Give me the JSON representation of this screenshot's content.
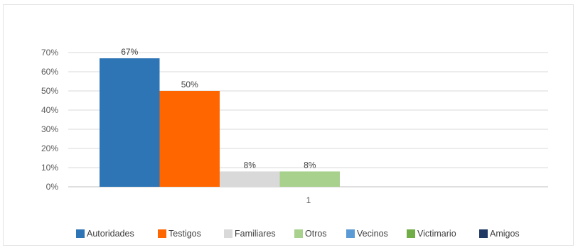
{
  "chart_data": {
    "type": "bar",
    "categories": [
      "1"
    ],
    "series": [
      {
        "name": "Autoridades",
        "values": [
          0.67
        ],
        "label": "67%",
        "color": "#2E75B6"
      },
      {
        "name": "Testigos",
        "values": [
          0.5
        ],
        "label": "50%",
        "color": "#FF6600"
      },
      {
        "name": "Familiares",
        "values": [
          0.08
        ],
        "label": "8%",
        "color": "#D9D9D9"
      },
      {
        "name": "Otros",
        "values": [
          0.08
        ],
        "label": "8%",
        "color": "#A9D18E"
      },
      {
        "name": "Vecinos",
        "values": [
          0
        ],
        "label": "",
        "color": "#5B9BD5"
      },
      {
        "name": "Victimario",
        "values": [
          0
        ],
        "label": "",
        "color": "#70AD47"
      },
      {
        "name": "Amigos",
        "values": [
          0
        ],
        "label": "",
        "color": "#1F3864"
      }
    ],
    "ylim": [
      0,
      0.7
    ],
    "yticks": [
      {
        "value": 0.0,
        "label": "0%"
      },
      {
        "value": 0.1,
        "label": "10%"
      },
      {
        "value": 0.2,
        "label": "20%"
      },
      {
        "value": 0.3,
        "label": "30%"
      },
      {
        "value": 0.4,
        "label": "40%"
      },
      {
        "value": 0.5,
        "label": "50%"
      },
      {
        "value": 0.6,
        "label": "60%"
      },
      {
        "value": 0.7,
        "label": "70%"
      }
    ],
    "grid": true,
    "legend": "bottom"
  }
}
